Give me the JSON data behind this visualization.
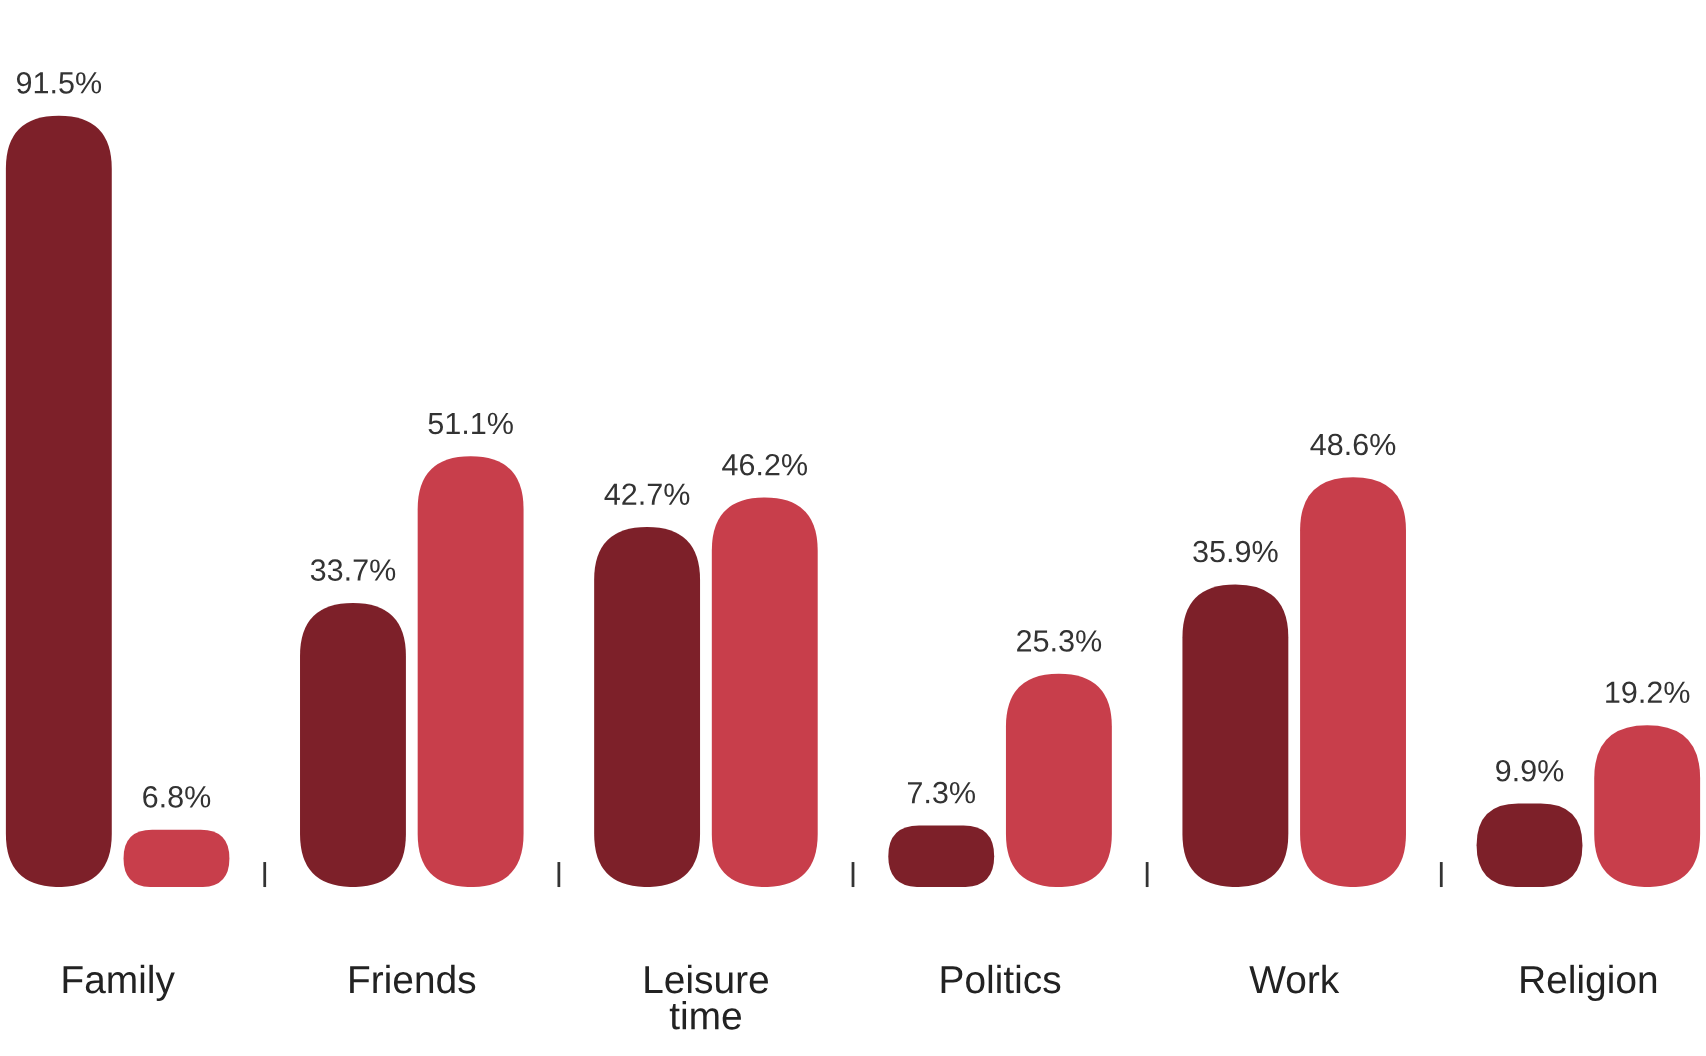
{
  "chart_data": {
    "type": "bar",
    "categories": [
      "Family",
      "Friends",
      "Leisure\ntime",
      "Politics",
      "Work",
      "Religion"
    ],
    "series": [
      {
        "color": "#7d2029",
        "values": [
          91.5,
          33.7,
          42.7,
          7.3,
          35.9,
          9.9
        ],
        "value_labels": [
          "91.5%",
          "33.7%",
          "42.7%",
          "7.3%",
          "35.9%",
          "9.9%"
        ]
      },
      {
        "color": "#c83e4b",
        "values": [
          6.8,
          51.1,
          46.2,
          25.3,
          48.6,
          19.2
        ],
        "value_labels": [
          "6.8%",
          "51.1%",
          "46.2%",
          "25.3%",
          "48.6%",
          "19.2%"
        ]
      }
    ],
    "grid": false,
    "legend": false
  }
}
